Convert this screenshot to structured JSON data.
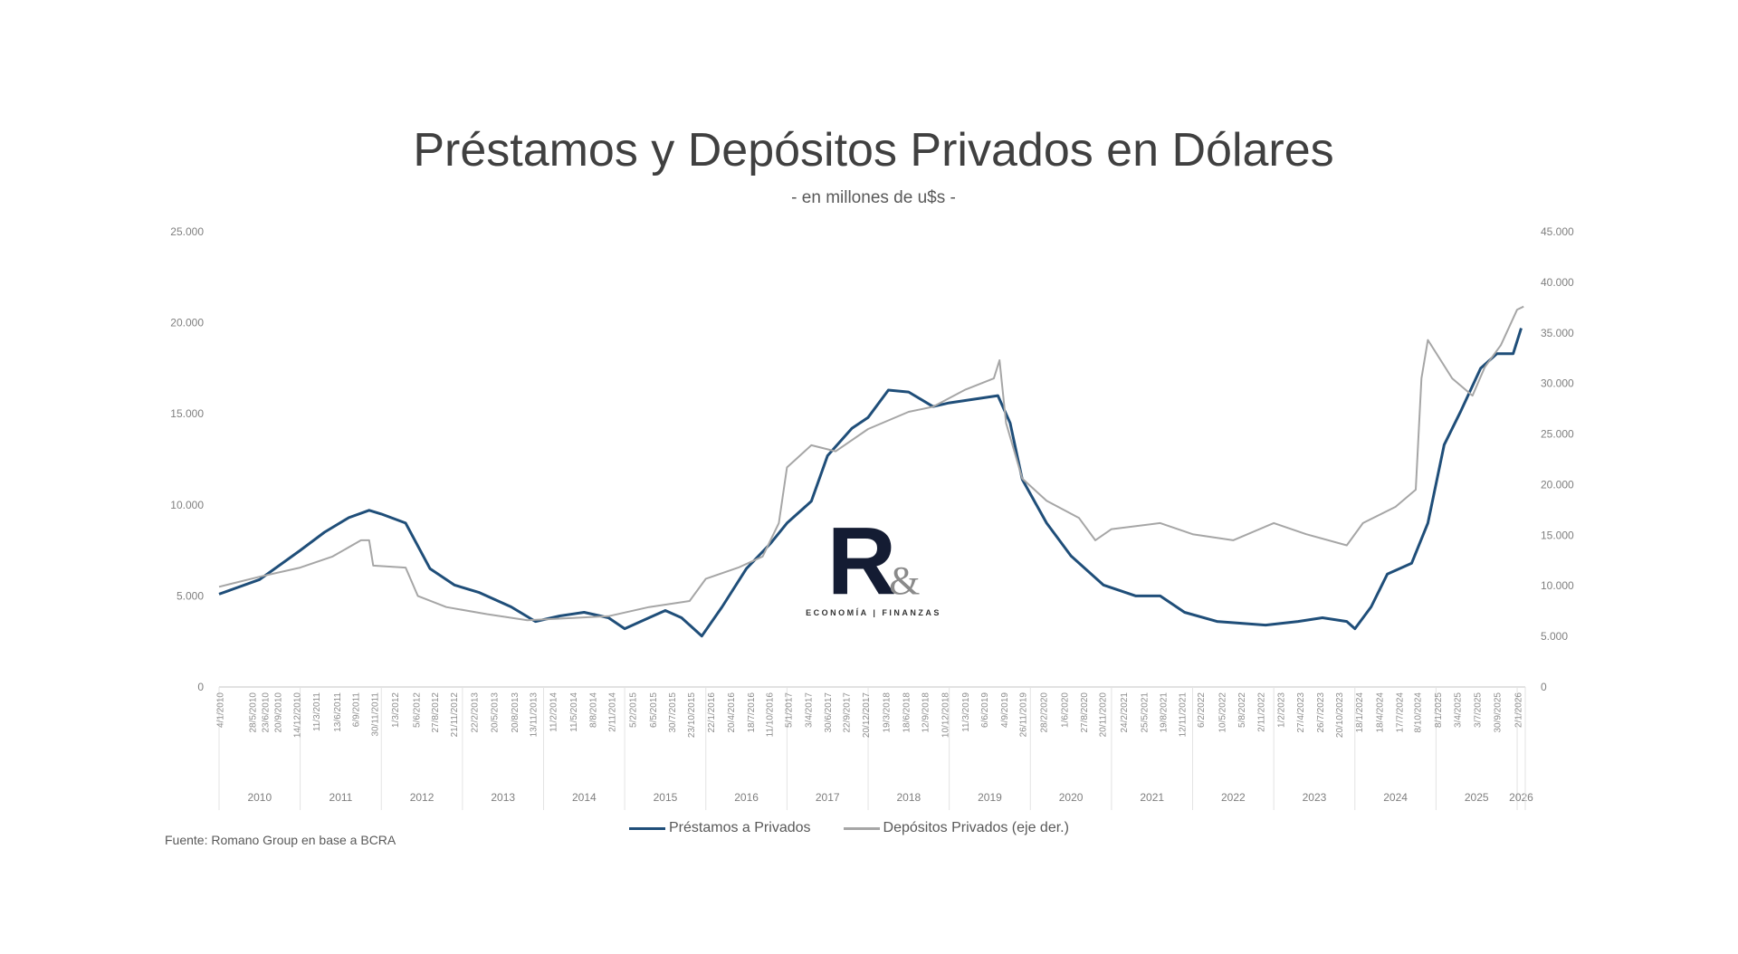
{
  "chart_data": {
    "type": "line",
    "title": "Préstamos y Depósitos Privados en Dólares",
    "subtitle": "- en millones de u$s -",
    "source": "Fuente: Romano Group en base a BCRA",
    "xlabel": "",
    "ylabel_left": "",
    "ylabel_right": "",
    "ylim_left": [
      0,
      25000
    ],
    "ylim_right": [
      0,
      45000
    ],
    "yticks_left": [
      "0",
      "5.000",
      "10.000",
      "15.000",
      "20.000",
      "25.000"
    ],
    "yticks_right": [
      "0",
      "5.000",
      "10.000",
      "15.000",
      "20.000",
      "25.000",
      "30.000",
      "35.000",
      "40.000",
      "45.000"
    ],
    "xlim_years": [
      2010.0,
      2026.1
    ],
    "year_groups": [
      "2010",
      "2011",
      "2012",
      "2013",
      "2014",
      "2015",
      "2016",
      "2017",
      "2018",
      "2019",
      "2020",
      "2021",
      "2022",
      "2023",
      "2024",
      "2025",
      "2026"
    ],
    "date_ticks": [
      "4/1/2010",
      "28/5/2010",
      "23/6/2010",
      "20/9/2010",
      "14/12/2010",
      "11/3/2011",
      "13/6/2011",
      "6/9/2011",
      "30/11/2011",
      "1/3/2012",
      "5/6/2012",
      "27/8/2012",
      "21/11/2012",
      "22/2/2013",
      "20/5/2013",
      "20/8/2013",
      "13/11/2013",
      "11/2/2014",
      "11/5/2014",
      "8/8/2014",
      "2/11/2014",
      "5/2/2015",
      "6/5/2015",
      "30/7/2015",
      "23/10/2015",
      "22/1/2016",
      "20/4/2016",
      "18/7/2016",
      "11/10/2016",
      "5/1/2017",
      "3/4/2017",
      "30/6/2017",
      "22/9/2017",
      "20/12/2017",
      "19/3/2018",
      "18/6/2018",
      "12/9/2018",
      "10/12/2018",
      "11/3/2019",
      "6/6/2019",
      "4/9/2019",
      "26/11/2019",
      "28/2/2020",
      "1/6/2020",
      "27/8/2020",
      "20/11/2020",
      "24/2/2021",
      "25/5/2021",
      "19/8/2021",
      "12/11/2021",
      "6/2/2022",
      "10/5/2022",
      "5/8/2022",
      "2/11/2022",
      "1/2/2023",
      "27/4/2023",
      "26/7/2023",
      "20/10/2023",
      "18/1/2024",
      "18/4/2024",
      "17/7/2024",
      "8/10/2024",
      "8/1/2025",
      "3/4/2025",
      "3/7/2025",
      "30/9/2025",
      "2/1/2026"
    ],
    "legend_position": "bottom",
    "grid": false,
    "series": [
      {
        "name": "Préstamos a Privados",
        "axis": "left",
        "color": "#1f4e79",
        "x": [
          2010.0,
          2010.5,
          2011.0,
          2011.3,
          2011.6,
          2011.85,
          2012.0,
          2012.3,
          2012.6,
          2012.9,
          2013.2,
          2013.6,
          2013.9,
          2014.2,
          2014.5,
          2014.8,
          2015.0,
          2015.3,
          2015.5,
          2015.7,
          2015.95,
          2016.2,
          2016.5,
          2016.8,
          2017.0,
          2017.3,
          2017.5,
          2017.8,
          2018.0,
          2018.25,
          2018.5,
          2018.8,
          2019.0,
          2019.3,
          2019.6,
          2019.75,
          2019.9,
          2020.2,
          2020.5,
          2020.9,
          2021.3,
          2021.6,
          2021.9,
          2022.3,
          2022.6,
          2022.9,
          2023.3,
          2023.6,
          2023.9,
          2024.0,
          2024.2,
          2024.4,
          2024.7,
          2024.9,
          2025.1,
          2025.3,
          2025.55,
          2025.75,
          2025.95,
          2026.05
        ],
        "values": [
          5100,
          5900,
          7500,
          8500,
          9300,
          9700,
          9500,
          9000,
          6500,
          5600,
          5200,
          4400,
          3600,
          3900,
          4100,
          3800,
          3200,
          3800,
          4200,
          3800,
          2800,
          4400,
          6500,
          7900,
          9000,
          10200,
          12700,
          14200,
          14800,
          16300,
          16200,
          15400,
          15600,
          15800,
          16000,
          14500,
          11400,
          9000,
          7200,
          5600,
          5000,
          5000,
          4100,
          3600,
          3500,
          3400,
          3600,
          3800,
          3600,
          3200,
          4400,
          6200,
          6800,
          9000,
          13300,
          15100,
          17500,
          18300,
          18300,
          19700
        ]
      },
      {
        "name": "Depósitos Privados (eje der.)",
        "axis": "right",
        "color": "#a6a6a6",
        "x": [
          2010.0,
          2010.5,
          2011.0,
          2011.4,
          2011.75,
          2011.85,
          2011.9,
          2012.3,
          2012.45,
          2012.8,
          2013.3,
          2013.8,
          2014.3,
          2014.8,
          2015.3,
          2015.8,
          2016.0,
          2016.4,
          2016.7,
          2016.9,
          2017.0,
          2017.3,
          2017.6,
          2018.0,
          2018.5,
          2018.8,
          2019.2,
          2019.55,
          2019.62,
          2019.7,
          2019.9,
          2020.2,
          2020.6,
          2020.8,
          2021.0,
          2021.6,
          2022.0,
          2022.5,
          2023.0,
          2023.4,
          2023.9,
          2024.1,
          2024.5,
          2024.75,
          2024.82,
          2024.9,
          2025.2,
          2025.45,
          2025.6,
          2025.8,
          2026.0,
          2026.08
        ],
        "values": [
          9900,
          10900,
          11800,
          12900,
          14500,
          14500,
          12000,
          11800,
          9000,
          7900,
          7200,
          6600,
          6800,
          7000,
          7900,
          8500,
          10700,
          11800,
          12900,
          16200,
          21700,
          23900,
          23300,
          25500,
          27200,
          27700,
          29400,
          30500,
          32300,
          26100,
          20600,
          18400,
          16700,
          14500,
          15600,
          16200,
          15100,
          14500,
          16200,
          15100,
          14000,
          16200,
          17800,
          19500,
          30500,
          34300,
          30500,
          28800,
          31600,
          33800,
          37300,
          37600
        ]
      }
    ]
  },
  "logo": {
    "mark": "R",
    "amp": "&",
    "tagline": "ECONOMÍA | FINANZAS"
  }
}
